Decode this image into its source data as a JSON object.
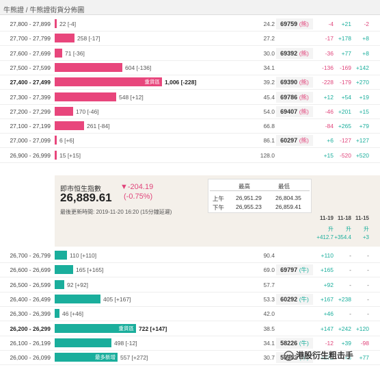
{
  "header": {
    "breadcrumb": "牛熊證 / 牛熊證街貨分佈圖"
  },
  "colors": {
    "bear": "#e8467c",
    "bull": "#1aae9c",
    "accent_red": "#e0457b"
  },
  "bear_rows": [
    {
      "range": "27,800 - 27,899",
      "bar_fraction": 0.01,
      "inner": "",
      "label": "22 [-4]",
      "bold": false,
      "v": "24.2",
      "code": "69759",
      "tag": "(熊)",
      "d1": "-4",
      "d2": "+21",
      "d3": "-2"
    },
    {
      "range": "27,700 - 27,799",
      "bar_fraction": 0.16,
      "inner": "",
      "label": "258 [-17]",
      "bold": false,
      "v": "27.2",
      "code": "",
      "tag": "",
      "d1": "-17",
      "d2": "+178",
      "d3": "+8"
    },
    {
      "range": "27,600 - 27,699",
      "bar_fraction": 0.06,
      "inner": "",
      "label": "71 [-36]",
      "bold": false,
      "v": "30.0",
      "code": "69392",
      "tag": "(熊)",
      "d1": "-36",
      "d2": "+77",
      "d3": "+8"
    },
    {
      "range": "27,500 - 27,599",
      "bar_fraction": 0.55,
      "inner": "",
      "label": "604 [-136]",
      "bold": false,
      "v": "34.1",
      "code": "",
      "tag": "",
      "d1": "-136",
      "d2": "-169",
      "d3": "+142"
    },
    {
      "range": "27,400 - 27,499",
      "bar_fraction": 0.87,
      "inner": "重貨區",
      "label": "1,006 [-228]",
      "bold": true,
      "v": "39.2",
      "code": "69390",
      "tag": "(熊)",
      "d1": "-228",
      "d2": "-179",
      "d3": "+270"
    },
    {
      "range": "27,300 - 27,399",
      "bar_fraction": 0.5,
      "inner": "",
      "label": "548 [+12]",
      "bold": false,
      "v": "45.4",
      "code": "69786",
      "tag": "(熊)",
      "d1": "+12",
      "d2": "+54",
      "d3": "+19"
    },
    {
      "range": "27,200 - 27,299",
      "bar_fraction": 0.15,
      "inner": "",
      "label": "170 [-46]",
      "bold": false,
      "v": "54.0",
      "code": "69407",
      "tag": "(熊)",
      "d1": "-46",
      "d2": "+201",
      "d3": "+15"
    },
    {
      "range": "27,100 - 27,199",
      "bar_fraction": 0.24,
      "inner": "",
      "label": "261 [-84]",
      "bold": false,
      "v": "66.8",
      "code": "",
      "tag": "",
      "d1": "-84",
      "d2": "+265",
      "d3": "+79"
    },
    {
      "range": "27,000 - 27,099",
      "bar_fraction": 0.01,
      "inner": "",
      "label": "6 [+6]",
      "bold": false,
      "v": "86.1",
      "code": "60297",
      "tag": "(熊)",
      "d1": "+6",
      "d2": "-127",
      "d3": "+127"
    },
    {
      "range": "26,900 - 26,999",
      "bar_fraction": 0.01,
      "inner": "",
      "label": "15 [+15]",
      "bold": false,
      "v": "128.0",
      "code": "",
      "tag": "",
      "d1": "+15",
      "d2": "-520",
      "d3": "+520"
    }
  ],
  "index_panel": {
    "title": "即市恒生指數",
    "value": "26,889.61",
    "change": "▼-204.19",
    "change_pct": "(-0.75%)",
    "updated": "最後更新時間: 2019-11-20 16:20 (15分鐘延遲)",
    "hl_headers": {
      "high": "最高",
      "low": "最低"
    },
    "hl_rows": [
      {
        "session": "上午",
        "high": "26,951.29",
        "low": "26,804.35"
      },
      {
        "session": "下午",
        "high": "26,955.23",
        "low": "26,859.41"
      }
    ],
    "dates": [
      "11-19",
      "11-18",
      "11-15"
    ],
    "date_sub": [
      "升",
      "升",
      "升"
    ],
    "date_vals": [
      "+412.7",
      "+354.4",
      "+3"
    ]
  },
  "bull_rows": [
    {
      "range": "26,700 - 26,799",
      "bar_fraction": 0.1,
      "inner": "",
      "label": "110 [+110]",
      "bold": false,
      "v": "90.4",
      "code": "",
      "tag": "",
      "d1": "+110",
      "d2": "-",
      "d3": "-"
    },
    {
      "range": "26,600 - 26,699",
      "bar_fraction": 0.15,
      "inner": "",
      "label": "165 [+165]",
      "bold": false,
      "v": "69.0",
      "code": "69797",
      "tag": "(牛)",
      "d1": "+165",
      "d2": "-",
      "d3": "-"
    },
    {
      "range": "26,500 - 26,599",
      "bar_fraction": 0.08,
      "inner": "",
      "label": "92 [+92]",
      "bold": false,
      "v": "57.7",
      "code": "",
      "tag": "",
      "d1": "+92",
      "d2": "-",
      "d3": "-"
    },
    {
      "range": "26,400 - 26,499",
      "bar_fraction": 0.37,
      "inner": "",
      "label": "405 [+167]",
      "bold": false,
      "v": "53.3",
      "code": "60292",
      "tag": "(牛)",
      "d1": "+167",
      "d2": "+238",
      "d3": "-"
    },
    {
      "range": "26,300 - 26,399",
      "bar_fraction": 0.04,
      "inner": "",
      "label": "46 [+46]",
      "bold": false,
      "v": "42.0",
      "code": "",
      "tag": "",
      "d1": "+46",
      "d2": "-",
      "d3": "-"
    },
    {
      "range": "26,200 - 26,299",
      "bar_fraction": 0.66,
      "inner": "重貨區",
      "label": "722 [+147]",
      "bold": true,
      "v": "38.5",
      "code": "",
      "tag": "",
      "d1": "+147",
      "d2": "+242",
      "d3": "+120"
    },
    {
      "range": "26,100 - 26,199",
      "bar_fraction": 0.46,
      "inner": "",
      "label": "498 [-12]",
      "bold": false,
      "v": "34.1",
      "code": "58226",
      "tag": "(牛)",
      "d1": "-12",
      "d2": "+39",
      "d3": "-98"
    },
    {
      "range": "26,000 - 26,099",
      "bar_fraction": 0.51,
      "inner": "最多新增",
      "label": "557 [+272]",
      "bold": false,
      "v": "30.7",
      "code": "59952",
      "tag": "(牛)",
      "d1": "+272",
      "d2": "+8",
      "d3": "+77"
    }
  ],
  "watermark": "港股衍生粗击手"
}
